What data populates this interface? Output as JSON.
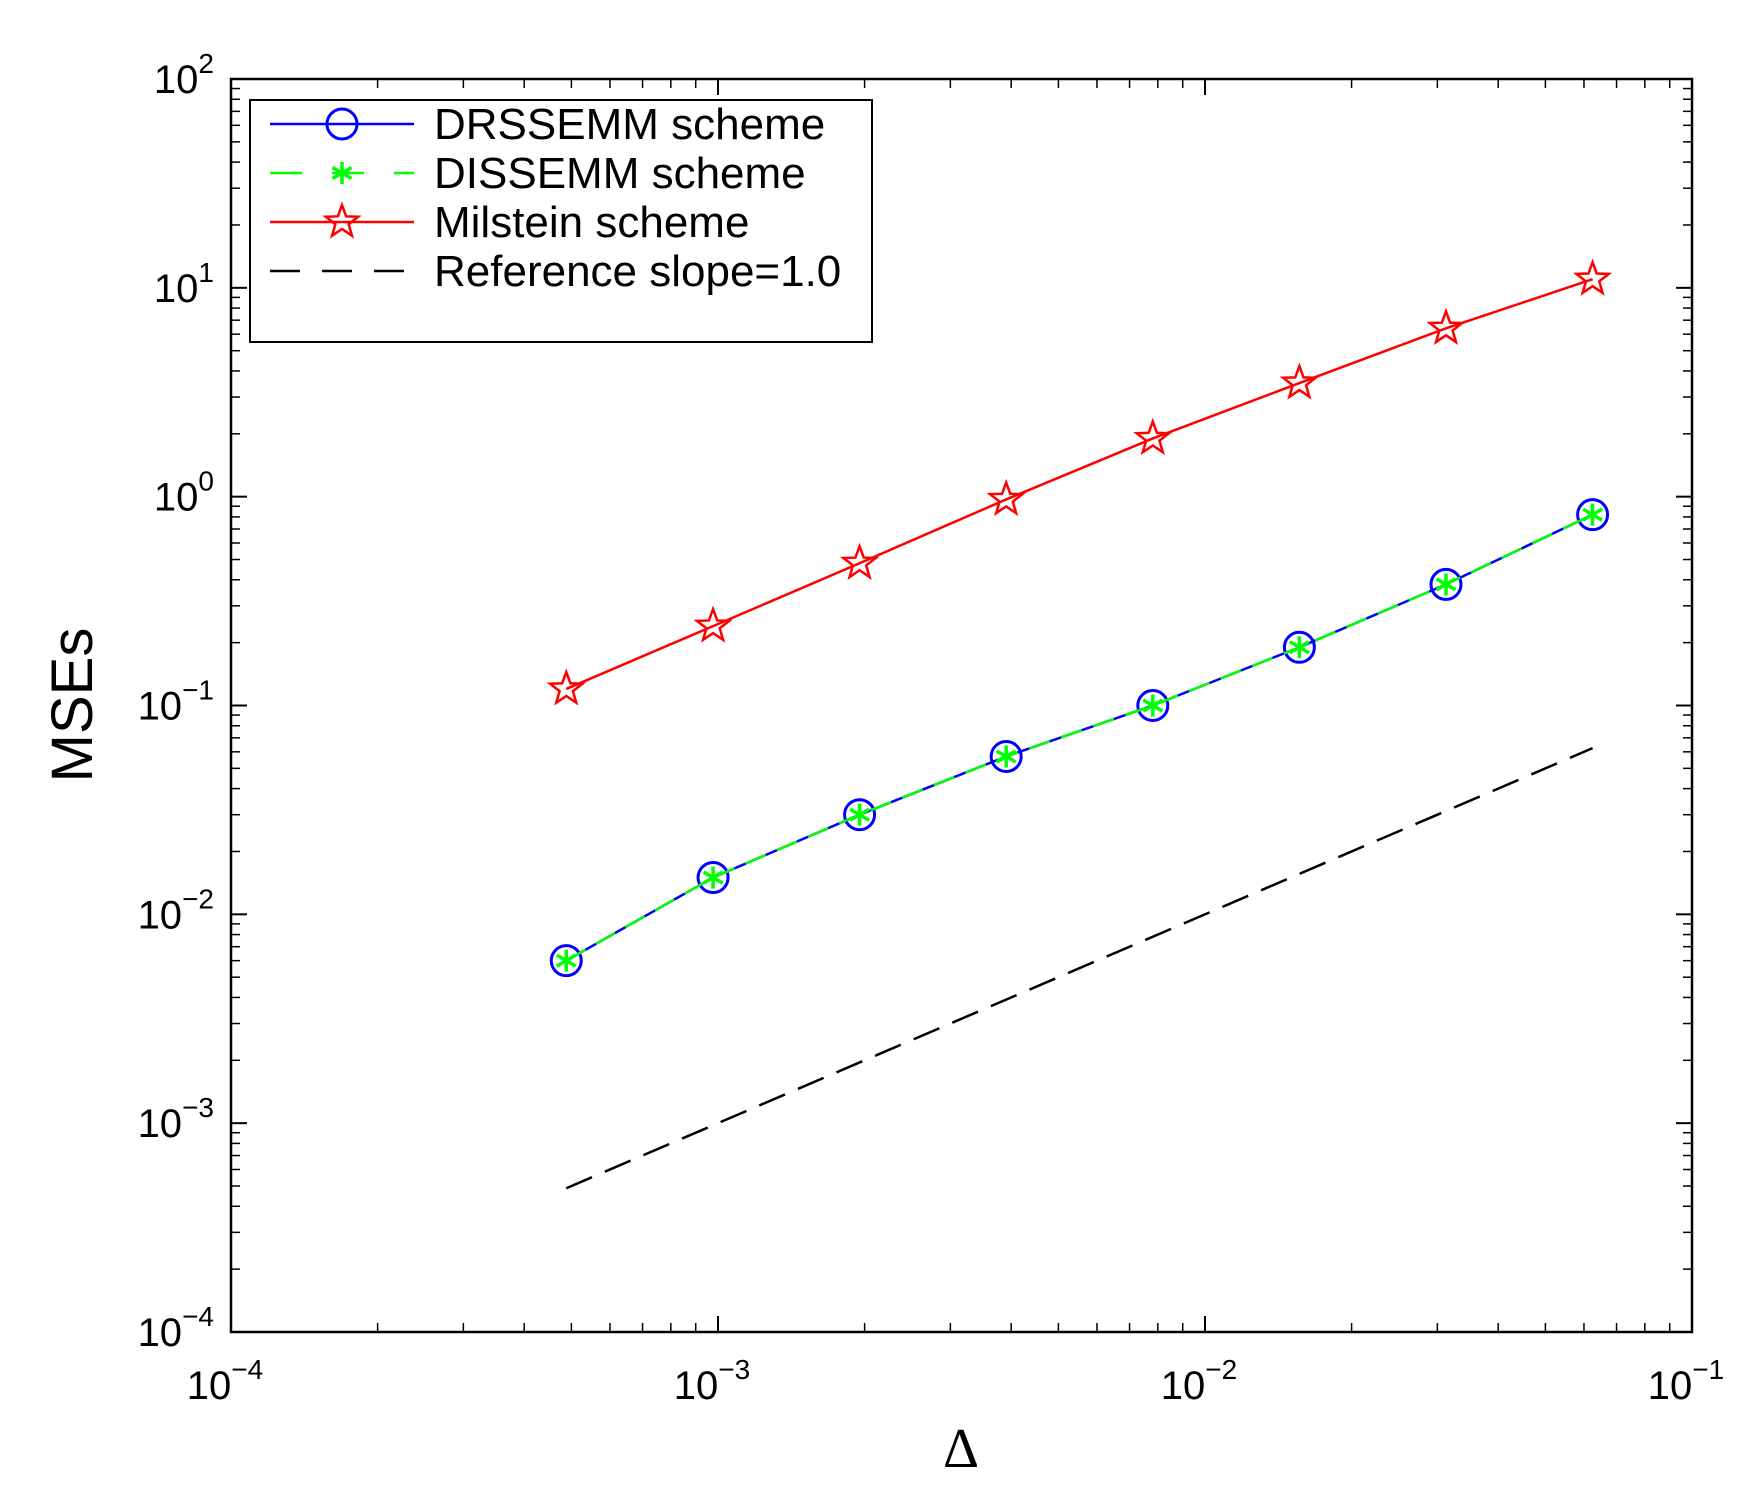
{
  "chart_data": {
    "type": "line",
    "xscale": "log",
    "yscale": "log",
    "xlim": [
      0.0001,
      0.1
    ],
    "ylim": [
      0.0001,
      100
    ],
    "xlabel": "Δ",
    "ylabel": "MSEs",
    "grid": false,
    "legend_position": "top-left",
    "x": [
      0.000488,
      0.000977,
      0.001953,
      0.003906,
      0.007813,
      0.015625,
      0.03125,
      0.0625
    ],
    "series": [
      {
        "name": "DRSSEMM scheme",
        "color": "#0000ff",
        "line": "solid",
        "marker": "circle",
        "values": [
          0.006,
          0.015,
          0.03,
          0.057,
          0.1,
          0.19,
          0.38,
          0.82
        ]
      },
      {
        "name": "DISSEMM scheme",
        "color": "#00ff00",
        "line": "dashed",
        "marker": "asterisk",
        "values": [
          0.006,
          0.015,
          0.03,
          0.057,
          0.1,
          0.19,
          0.38,
          0.82
        ]
      },
      {
        "name": "Milstein scheme",
        "color": "#ff0000",
        "line": "solid",
        "marker": "pentagram",
        "values": [
          0.12,
          0.24,
          0.48,
          0.97,
          1.9,
          3.5,
          6.4,
          11
        ]
      },
      {
        "name": "Reference slope=1.0",
        "color": "#000000",
        "line": "dashed",
        "marker": "none",
        "values": [
          0.000488,
          0.000977,
          0.001953,
          0.003906,
          0.007813,
          0.015625,
          0.03125,
          0.0625
        ]
      }
    ],
    "x_ticks": [
      {
        "value": 0.0001,
        "base": "10",
        "exp": "−4"
      },
      {
        "value": 0.001,
        "base": "10",
        "exp": "−3"
      },
      {
        "value": 0.01,
        "base": "10",
        "exp": "−2"
      },
      {
        "value": 0.1,
        "base": "10",
        "exp": "−1"
      }
    ],
    "y_ticks": [
      {
        "value": 0.0001,
        "base": "10",
        "exp": "−4"
      },
      {
        "value": 0.001,
        "base": "10",
        "exp": "−3"
      },
      {
        "value": 0.01,
        "base": "10",
        "exp": "−2"
      },
      {
        "value": 0.1,
        "base": "10",
        "exp": "−1"
      },
      {
        "value": 1,
        "base": "10",
        "exp": "0"
      },
      {
        "value": 10,
        "base": "10",
        "exp": "1"
      },
      {
        "value": 100,
        "base": "10",
        "exp": "2"
      }
    ]
  }
}
